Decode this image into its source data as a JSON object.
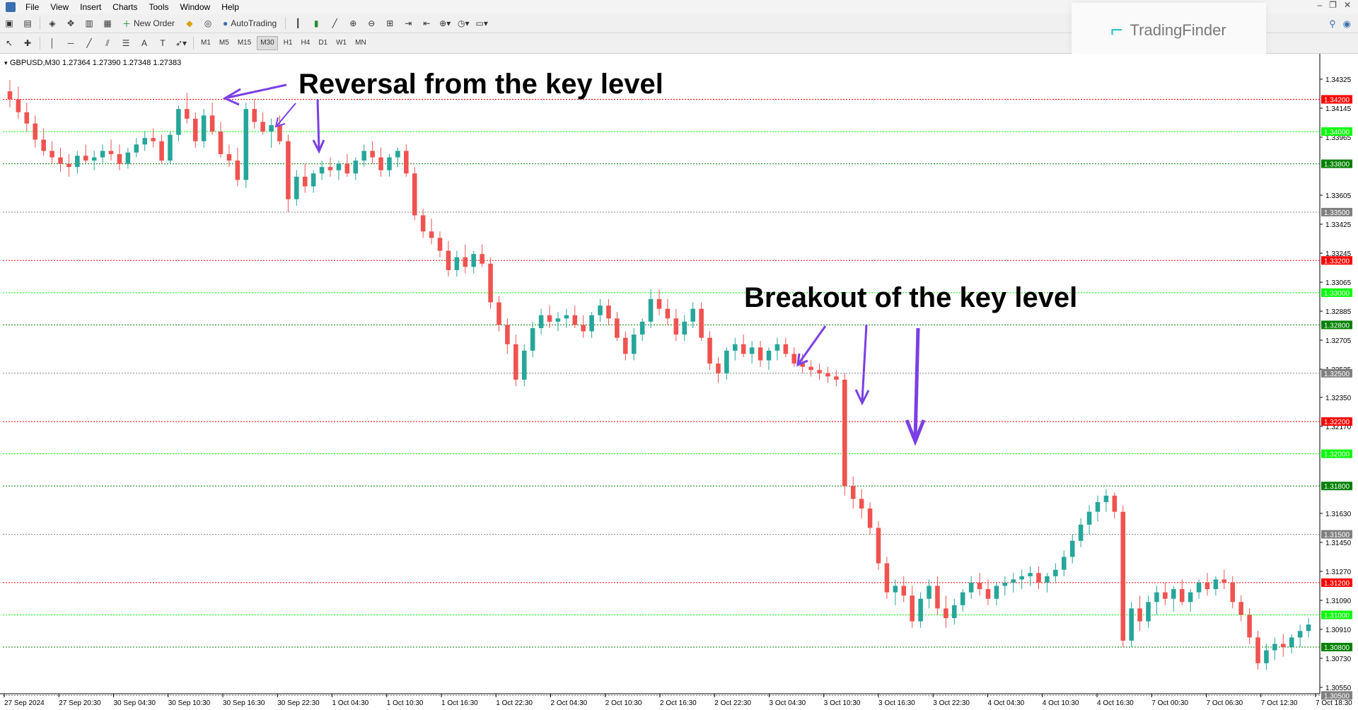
{
  "menu": [
    "File",
    "View",
    "Insert",
    "Charts",
    "Tools",
    "Window",
    "Help"
  ],
  "toolbar": {
    "new_order_label": "New Order",
    "autotrading_label": "AutoTrading"
  },
  "timeframes": [
    "M1",
    "M5",
    "M15",
    "M30",
    "H1",
    "H4",
    "D1",
    "W1",
    "MN"
  ],
  "active_timeframe": "M30",
  "brand": {
    "name": "TradingFinder"
  },
  "chart_info": "GBPUSD,M30  1.27364 1.27390 1.27348 1.27383",
  "annotations": {
    "top": "Reversal from the key level",
    "middle": "Breakout of the key level"
  },
  "chart_data": {
    "type": "candlestick",
    "symbol": "GBPUSD",
    "timeframe": "M30",
    "ylim": [
      1.305,
      1.344
    ],
    "price_axis_labels": [
      "1.34325",
      "1.34145",
      "1.33965",
      "1.33605",
      "1.33425",
      "1.33245",
      "1.33065",
      "1.32885",
      "1.32705",
      "1.32525",
      "1.32350",
      "1.32170",
      "1.31630",
      "1.31450",
      "1.31270",
      "1.31090",
      "1.30910",
      "1.30730",
      "1.30550"
    ],
    "x_labels": [
      "27 Sep 2024",
      "27 Sep 20:30",
      "30 Sep 04:30",
      "30 Sep 10:30",
      "30 Sep 16:30",
      "30 Sep 22:30",
      "1 Oct 04:30",
      "1 Oct 10:30",
      "1 Oct 16:30",
      "1 Oct 22:30",
      "2 Oct 04:30",
      "2 Oct 10:30",
      "2 Oct 16:30",
      "2 Oct 22:30",
      "3 Oct 04:30",
      "3 Oct 10:30",
      "3 Oct 16:30",
      "3 Oct 22:30",
      "4 Oct 04:30",
      "4 Oct 10:30",
      "4 Oct 16:30",
      "7 Oct 00:30",
      "7 Oct 06:30",
      "7 Oct 12:30",
      "7 Oct 18:30"
    ],
    "key_levels": [
      {
        "price": 1.342,
        "label": "1.34200",
        "color": "#ff0000"
      },
      {
        "price": 1.34,
        "label": "1.34000",
        "color": "#00ff00"
      },
      {
        "price": 1.338,
        "label": "1.33800",
        "color": "#008000"
      },
      {
        "price": 1.335,
        "label": "1.33500",
        "color": "#808080"
      },
      {
        "price": 1.332,
        "label": "1.33200",
        "color": "#ff0000"
      },
      {
        "price": 1.33,
        "label": "1.33000",
        "color": "#00ff00"
      },
      {
        "price": 1.328,
        "label": "1.32800",
        "color": "#008000"
      },
      {
        "price": 1.325,
        "label": "1.32500",
        "color": "#808080"
      },
      {
        "price": 1.322,
        "label": "1.32200",
        "color": "#ff0000"
      },
      {
        "price": 1.32,
        "label": "1.32000",
        "color": "#00ff00"
      },
      {
        "price": 1.318,
        "label": "1.31800",
        "color": "#008000"
      },
      {
        "price": 1.315,
        "label": "1.31500",
        "color": "#808080"
      },
      {
        "price": 1.312,
        "label": "1.31200",
        "color": "#ff0000"
      },
      {
        "price": 1.31,
        "label": "1.31000",
        "color": "#00ff00"
      },
      {
        "price": 1.308,
        "label": "1.30800",
        "color": "#008000"
      },
      {
        "price": 1.305,
        "label": "1.30500",
        "color": "#808080"
      }
    ],
    "candles": [
      [
        1.3425,
        1.3432,
        1.3415,
        1.342
      ],
      [
        1.342,
        1.3428,
        1.3408,
        1.3412
      ],
      [
        1.3412,
        1.3418,
        1.34,
        1.3405
      ],
      [
        1.3405,
        1.341,
        1.339,
        1.3395
      ],
      [
        1.3395,
        1.3402,
        1.3385,
        1.3388
      ],
      [
        1.3388,
        1.3394,
        1.338,
        1.3384
      ],
      [
        1.3384,
        1.339,
        1.3375,
        1.338
      ],
      [
        1.338,
        1.3386,
        1.3372,
        1.3378
      ],
      [
        1.3378,
        1.3388,
        1.3374,
        1.3385
      ],
      [
        1.3385,
        1.3392,
        1.338,
        1.3382
      ],
      [
        1.3382,
        1.3388,
        1.3376,
        1.3384
      ],
      [
        1.3384,
        1.3392,
        1.338,
        1.3388
      ],
      [
        1.3388,
        1.3395,
        1.3382,
        1.3386
      ],
      [
        1.3386,
        1.3392,
        1.3376,
        1.338
      ],
      [
        1.338,
        1.339,
        1.3377,
        1.3387
      ],
      [
        1.3387,
        1.3396,
        1.3384,
        1.3392
      ],
      [
        1.3392,
        1.34,
        1.3388,
        1.3396
      ],
      [
        1.3396,
        1.3402,
        1.339,
        1.3394
      ],
      [
        1.3394,
        1.3398,
        1.338,
        1.3382
      ],
      [
        1.3382,
        1.34,
        1.338,
        1.3398
      ],
      [
        1.3398,
        1.3416,
        1.3394,
        1.3414
      ],
      [
        1.3414,
        1.3424,
        1.3405,
        1.3408
      ],
      [
        1.3408,
        1.3412,
        1.339,
        1.3394
      ],
      [
        1.3394,
        1.3414,
        1.339,
        1.341
      ],
      [
        1.341,
        1.3418,
        1.3398,
        1.34
      ],
      [
        1.34,
        1.3406,
        1.3384,
        1.3386
      ],
      [
        1.3386,
        1.3392,
        1.3378,
        1.3382
      ],
      [
        1.3382,
        1.339,
        1.3366,
        1.337
      ],
      [
        1.337,
        1.3418,
        1.3365,
        1.3414
      ],
      [
        1.3414,
        1.342,
        1.3402,
        1.3406
      ],
      [
        1.3406,
        1.3412,
        1.3398,
        1.34
      ],
      [
        1.34,
        1.3408,
        1.339,
        1.3404
      ],
      [
        1.3404,
        1.341,
        1.3392,
        1.3394
      ],
      [
        1.3394,
        1.3398,
        1.335,
        1.3358
      ],
      [
        1.3358,
        1.3376,
        1.3354,
        1.3372
      ],
      [
        1.3372,
        1.338,
        1.3362,
        1.3366
      ],
      [
        1.3366,
        1.3376,
        1.3362,
        1.3374
      ],
      [
        1.3374,
        1.3382,
        1.337,
        1.3378
      ],
      [
        1.3378,
        1.3384,
        1.3372,
        1.3376
      ],
      [
        1.3376,
        1.3382,
        1.337,
        1.338
      ],
      [
        1.338,
        1.3386,
        1.3372,
        1.3374
      ],
      [
        1.3374,
        1.3384,
        1.337,
        1.3382
      ],
      [
        1.3382,
        1.3392,
        1.3378,
        1.3388
      ],
      [
        1.3388,
        1.3394,
        1.338,
        1.3384
      ],
      [
        1.3384,
        1.339,
        1.3372,
        1.3376
      ],
      [
        1.3376,
        1.3386,
        1.3372,
        1.3384
      ],
      [
        1.3384,
        1.339,
        1.3378,
        1.3388
      ],
      [
        1.3388,
        1.3392,
        1.3372,
        1.3374
      ],
      [
        1.3374,
        1.3378,
        1.3345,
        1.3348
      ],
      [
        1.3348,
        1.3352,
        1.3334,
        1.3338
      ],
      [
        1.3338,
        1.3346,
        1.333,
        1.3334
      ],
      [
        1.3334,
        1.3338,
        1.3322,
        1.3326
      ],
      [
        1.3326,
        1.3332,
        1.331,
        1.3314
      ],
      [
        1.3314,
        1.3326,
        1.331,
        1.3322
      ],
      [
        1.3322,
        1.333,
        1.3312,
        1.3316
      ],
      [
        1.3316,
        1.3326,
        1.3312,
        1.3324
      ],
      [
        1.3324,
        1.333,
        1.3316,
        1.3318
      ],
      [
        1.3318,
        1.3322,
        1.329,
        1.3294
      ],
      [
        1.3294,
        1.3298,
        1.3276,
        1.328
      ],
      [
        1.328,
        1.3284,
        1.3262,
        1.3268
      ],
      [
        1.3268,
        1.3274,
        1.3242,
        1.3246
      ],
      [
        1.3246,
        1.3268,
        1.3242,
        1.3264
      ],
      [
        1.3264,
        1.3282,
        1.326,
        1.3278
      ],
      [
        1.3278,
        1.329,
        1.3274,
        1.3286
      ],
      [
        1.3286,
        1.3292,
        1.3278,
        1.3282
      ],
      [
        1.3282,
        1.3288,
        1.3276,
        1.3284
      ],
      [
        1.3284,
        1.329,
        1.3278,
        1.3286
      ],
      [
        1.3286,
        1.3292,
        1.3278,
        1.328
      ],
      [
        1.328,
        1.3286,
        1.3272,
        1.3276
      ],
      [
        1.3276,
        1.3288,
        1.3272,
        1.3286
      ],
      [
        1.3286,
        1.3296,
        1.3282,
        1.3292
      ],
      [
        1.3292,
        1.3296,
        1.328,
        1.3284
      ],
      [
        1.3284,
        1.3288,
        1.327,
        1.3272
      ],
      [
        1.3272,
        1.3276,
        1.3258,
        1.3262
      ],
      [
        1.3262,
        1.3278,
        1.3258,
        1.3274
      ],
      [
        1.3274,
        1.3284,
        1.327,
        1.3282
      ],
      [
        1.3282,
        1.3302,
        1.3278,
        1.3296
      ],
      [
        1.3296,
        1.3302,
        1.3286,
        1.329
      ],
      [
        1.329,
        1.3296,
        1.328,
        1.3284
      ],
      [
        1.3284,
        1.329,
        1.327,
        1.3274
      ],
      [
        1.3274,
        1.3286,
        1.327,
        1.3282
      ],
      [
        1.3282,
        1.3294,
        1.3278,
        1.329
      ],
      [
        1.329,
        1.3294,
        1.327,
        1.3272
      ],
      [
        1.3272,
        1.3276,
        1.3252,
        1.3256
      ],
      [
        1.3256,
        1.326,
        1.3244,
        1.325
      ],
      [
        1.325,
        1.3266,
        1.3246,
        1.3264
      ],
      [
        1.3264,
        1.3272,
        1.3258,
        1.3268
      ],
      [
        1.3268,
        1.3274,
        1.326,
        1.3262
      ],
      [
        1.3262,
        1.327,
        1.3256,
        1.3266
      ],
      [
        1.3266,
        1.327,
        1.3254,
        1.3258
      ],
      [
        1.3258,
        1.3266,
        1.3252,
        1.3264
      ],
      [
        1.3264,
        1.3272,
        1.3258,
        1.3268
      ],
      [
        1.3268,
        1.3272,
        1.326,
        1.3262
      ],
      [
        1.3262,
        1.3266,
        1.3254,
        1.3256
      ],
      [
        1.3256,
        1.3262,
        1.325,
        1.3254
      ],
      [
        1.3254,
        1.3258,
        1.3248,
        1.3252
      ],
      [
        1.3252,
        1.3256,
        1.3246,
        1.325
      ],
      [
        1.325,
        1.3254,
        1.3244,
        1.3248
      ],
      [
        1.3248,
        1.3252,
        1.3242,
        1.3246
      ],
      [
        1.3246,
        1.325,
        1.3174,
        1.318
      ],
      [
        1.318,
        1.3186,
        1.3166,
        1.3172
      ],
      [
        1.3172,
        1.3178,
        1.316,
        1.3166
      ],
      [
        1.3166,
        1.317,
        1.315,
        1.3154
      ],
      [
        1.3154,
        1.3158,
        1.3128,
        1.3132
      ],
      [
        1.3132,
        1.3136,
        1.311,
        1.3114
      ],
      [
        1.3114,
        1.3122,
        1.3106,
        1.3118
      ],
      [
        1.3118,
        1.3124,
        1.3108,
        1.3112
      ],
      [
        1.3112,
        1.3118,
        1.3092,
        1.3096
      ],
      [
        1.3096,
        1.3114,
        1.3092,
        1.311
      ],
      [
        1.311,
        1.3122,
        1.3104,
        1.3118
      ],
      [
        1.3118,
        1.3124,
        1.31,
        1.3104
      ],
      [
        1.3104,
        1.3112,
        1.3092,
        1.3098
      ],
      [
        1.3098,
        1.311,
        1.3094,
        1.3106
      ],
      [
        1.3106,
        1.3116,
        1.3102,
        1.3114
      ],
      [
        1.3114,
        1.3124,
        1.311,
        1.312
      ],
      [
        1.312,
        1.3126,
        1.3112,
        1.3116
      ],
      [
        1.3116,
        1.3122,
        1.3106,
        1.311
      ],
      [
        1.311,
        1.312,
        1.3106,
        1.3118
      ],
      [
        1.3118,
        1.3124,
        1.3112,
        1.312
      ],
      [
        1.312,
        1.3126,
        1.3114,
        1.3122
      ],
      [
        1.3122,
        1.3128,
        1.3116,
        1.3124
      ],
      [
        1.3124,
        1.313,
        1.3118,
        1.3126
      ],
      [
        1.3126,
        1.313,
        1.3116,
        1.312
      ],
      [
        1.312,
        1.3126,
        1.3114,
        1.3124
      ],
      [
        1.3124,
        1.3132,
        1.312,
        1.3128
      ],
      [
        1.3128,
        1.314,
        1.3124,
        1.3136
      ],
      [
        1.3136,
        1.315,
        1.3132,
        1.3146
      ],
      [
        1.3146,
        1.316,
        1.3142,
        1.3156
      ],
      [
        1.3156,
        1.3168,
        1.315,
        1.3164
      ],
      [
        1.3164,
        1.3174,
        1.3158,
        1.317
      ],
      [
        1.317,
        1.3178,
        1.3164,
        1.3174
      ],
      [
        1.3174,
        1.3176,
        1.316,
        1.3164
      ],
      [
        1.3164,
        1.3168,
        1.308,
        1.3084
      ],
      [
        1.3084,
        1.3108,
        1.308,
        1.3104
      ],
      [
        1.3104,
        1.3112,
        1.309,
        1.3096
      ],
      [
        1.3096,
        1.3112,
        1.3092,
        1.3108
      ],
      [
        1.3108,
        1.3118,
        1.31,
        1.3114
      ],
      [
        1.3114,
        1.312,
        1.3106,
        1.311
      ],
      [
        1.311,
        1.3118,
        1.3102,
        1.3116
      ],
      [
        1.3116,
        1.3122,
        1.3106,
        1.3108
      ],
      [
        1.3108,
        1.3116,
        1.3102,
        1.3114
      ],
      [
        1.3114,
        1.3122,
        1.311,
        1.312
      ],
      [
        1.312,
        1.3126,
        1.3112,
        1.3116
      ],
      [
        1.3116,
        1.3124,
        1.3112,
        1.3122
      ],
      [
        1.3122,
        1.3128,
        1.3116,
        1.312
      ],
      [
        1.312,
        1.3124,
        1.3104,
        1.3108
      ],
      [
        1.3108,
        1.3112,
        1.3096,
        1.31
      ],
      [
        1.31,
        1.3104,
        1.3082,
        1.3086
      ],
      [
        1.3086,
        1.309,
        1.3066,
        1.307
      ],
      [
        1.307,
        1.3082,
        1.3066,
        1.3078
      ],
      [
        1.3078,
        1.3086,
        1.3072,
        1.3082
      ],
      [
        1.3082,
        1.3088,
        1.3074,
        1.308
      ],
      [
        1.308,
        1.3088,
        1.3076,
        1.3086
      ],
      [
        1.3086,
        1.3094,
        1.308,
        1.309
      ],
      [
        1.309,
        1.3098,
        1.3086,
        1.3094
      ]
    ]
  }
}
